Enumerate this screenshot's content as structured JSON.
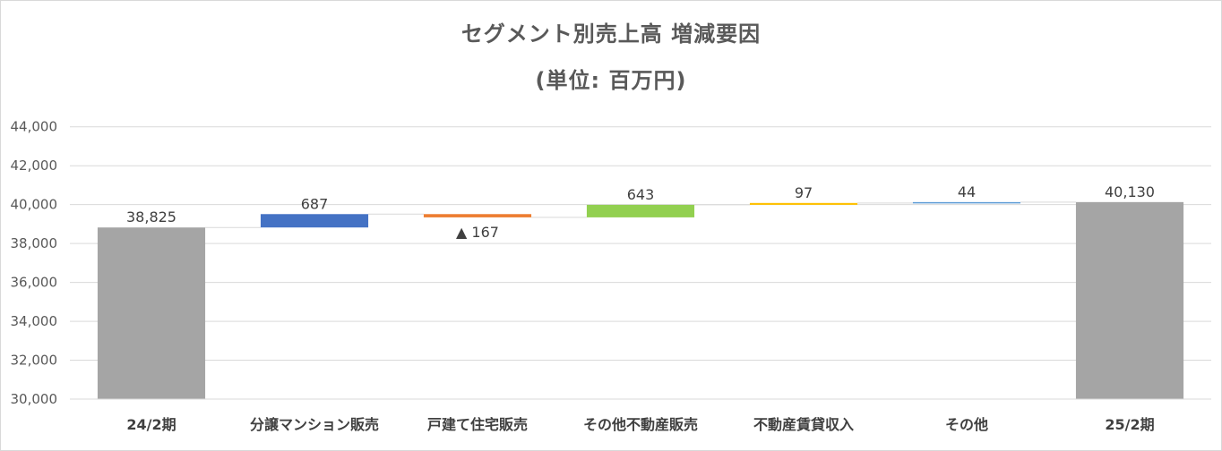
{
  "chart_data": {
    "type": "waterfall",
    "title": "セグメント別売上高 増減要因",
    "subtitle": "(単位: 百万円)",
    "ylim": [
      30000,
      45000
    ],
    "yticks": [
      "30,000",
      "32,000",
      "34,000",
      "36,000",
      "38,000",
      "40,000",
      "42,000",
      "44,000"
    ],
    "yticks_values": [
      30000,
      32000,
      34000,
      36000,
      38000,
      40000,
      42000,
      44000
    ],
    "grid": true,
    "categories": [
      "24/2期",
      "分譲マンション販売",
      "戸建て住宅販売",
      "その他不動産販売",
      "不動産賃貸収入",
      "その他",
      "25/2期"
    ],
    "values": [
      38825,
      687,
      -167,
      643,
      97,
      44,
      40130
    ],
    "kinds": [
      "total",
      "delta",
      "delta",
      "delta",
      "delta",
      "delta",
      "total"
    ],
    "labels": [
      "38,825",
      "687",
      "▲ 167",
      "643",
      "97",
      "44",
      "40,130"
    ],
    "colors": [
      "#a5a5a5",
      "#4472c4",
      "#ed7d31",
      "#92d050",
      "#ffc000",
      "#5b9bd5",
      "#a5a5a5"
    ],
    "connector_color": "#d9d9d9"
  }
}
